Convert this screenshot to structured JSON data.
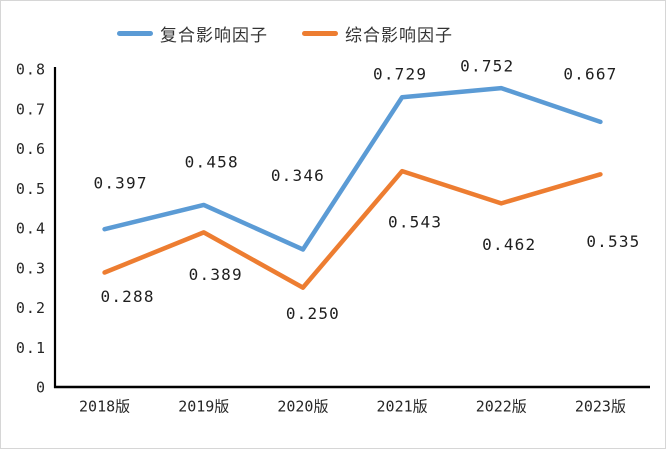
{
  "chart_data": {
    "type": "line",
    "categories": [
      "2018版",
      "2019版",
      "2020版",
      "2021版",
      "2022版",
      "2023版"
    ],
    "series": [
      {
        "name": "复合影响因子",
        "color": "#5B9BD5",
        "values": [
          0.397,
          0.458,
          0.346,
          0.729,
          0.752,
          0.667
        ],
        "labels": [
          "0.397",
          "0.458",
          "0.346",
          "0.729",
          "0.752",
          "0.667"
        ],
        "label_position": "above"
      },
      {
        "name": "综合影响因子",
        "color": "#ED7D31",
        "values": [
          0.288,
          0.389,
          0.25,
          0.543,
          0.462,
          0.535
        ],
        "labels": [
          "0.288",
          "0.389",
          "0.250",
          "0.543",
          "0.462",
          "0.535"
        ],
        "label_position": "below"
      }
    ],
    "title": "",
    "xlabel": "",
    "ylabel": "",
    "ylim": [
      0,
      0.8
    ],
    "yticks": [
      "0",
      "0.1",
      "0.2",
      "0.3",
      "0.4",
      "0.5",
      "0.6",
      "0.7",
      "0.8"
    ],
    "grid": false,
    "legend_position": "top",
    "axis_color": "#000000",
    "tick_label_color": "#262626",
    "data_label_color": "#1f1f1f"
  }
}
